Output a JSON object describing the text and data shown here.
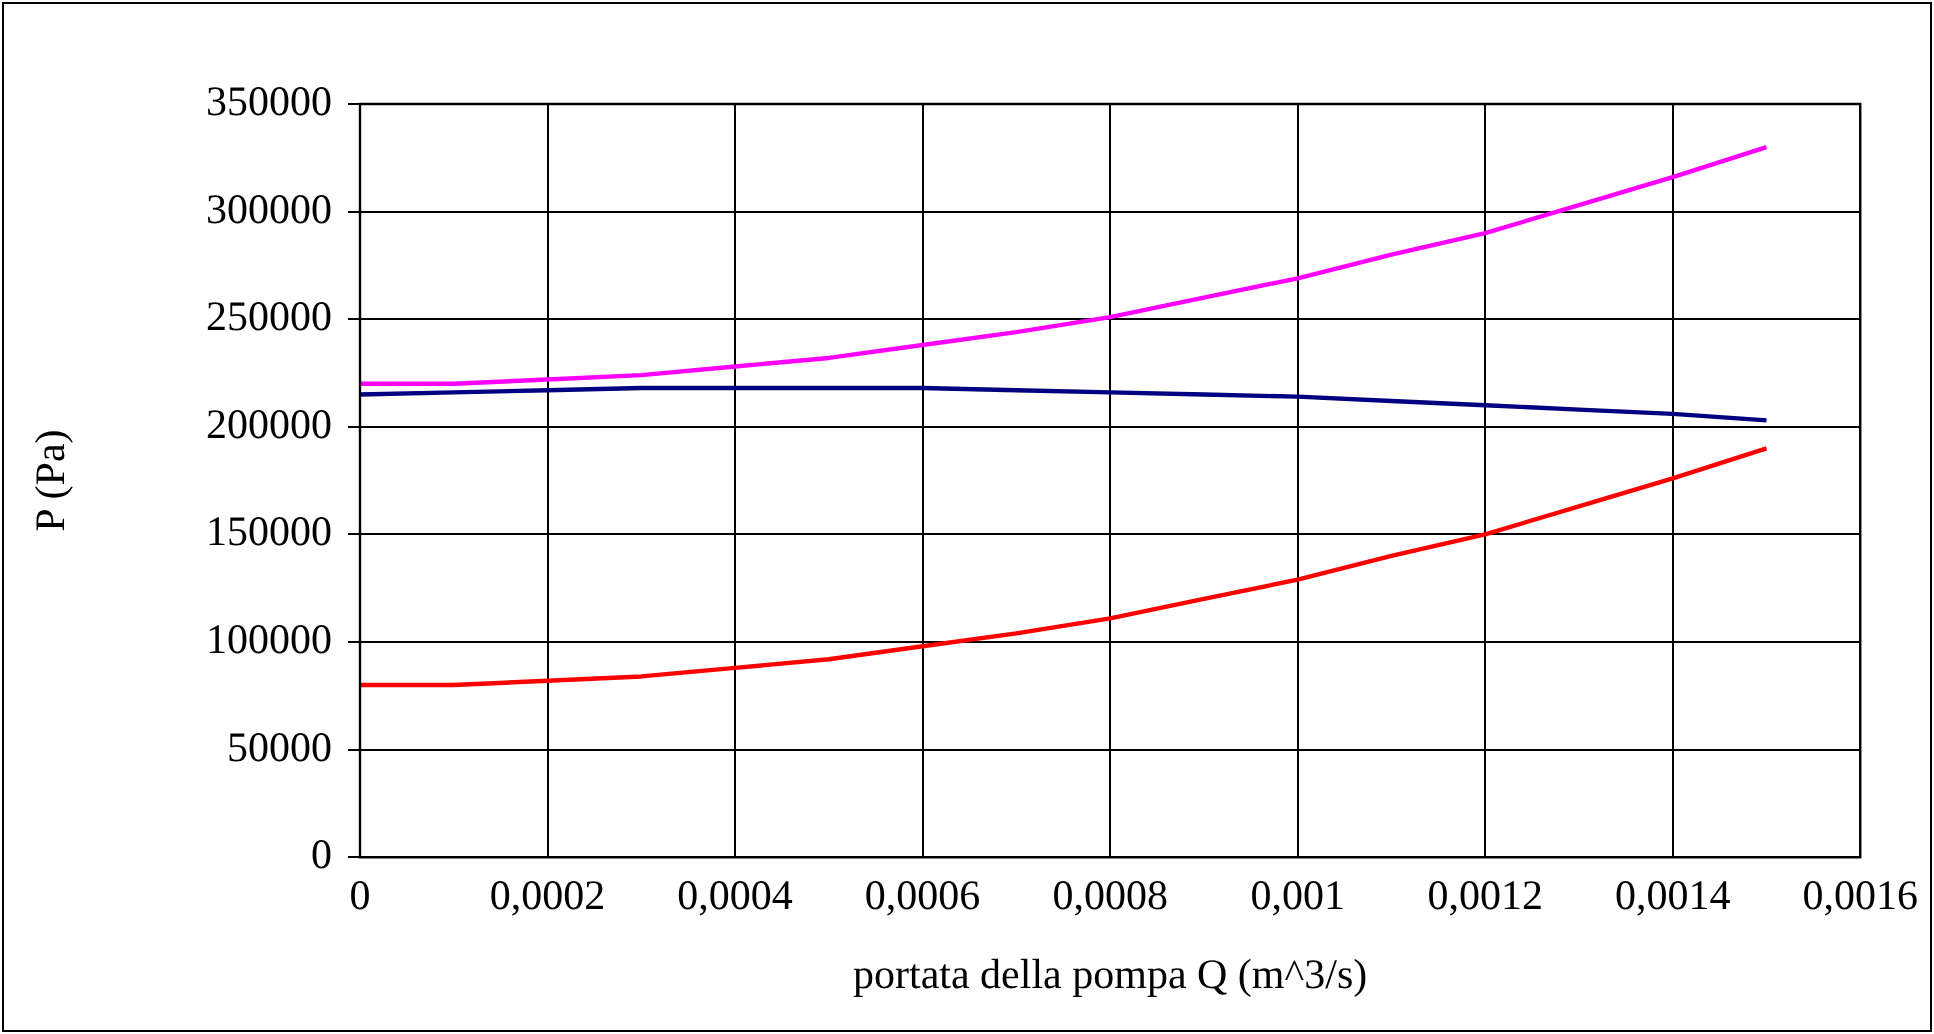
{
  "chart_data": {
    "type": "line",
    "xlabel": "portata della pompa Q (m^3/s)",
    "ylabel": "P (Pa)",
    "x": [
      0,
      0.0001,
      0.0002,
      0.0003,
      0.0004,
      0.0005,
      0.0006,
      0.0007,
      0.0008,
      0.0009,
      0.001,
      0.0011,
      0.0012,
      0.0013,
      0.0014,
      0.0015
    ],
    "series": [
      {
        "color": "#ff00ff",
        "values": [
          220000,
          220000,
          222000,
          224000,
          228000,
          232000,
          238000,
          244000,
          251000,
          260000,
          269000,
          280000,
          290000,
          303000,
          316000,
          330000
        ]
      },
      {
        "color": "#000080",
        "values": [
          215000,
          216000,
          217000,
          218000,
          218000,
          218000,
          218000,
          217000,
          216000,
          215000,
          214000,
          212000,
          210000,
          208000,
          206000,
          203000
        ]
      },
      {
        "color": "#ff0000",
        "values": [
          80000,
          80000,
          82000,
          84000,
          88000,
          92000,
          98000,
          104000,
          111000,
          120000,
          129000,
          140000,
          150000,
          163000,
          176000,
          190000
        ]
      }
    ],
    "xlim": [
      0,
      0.0016
    ],
    "xticks": [
      0,
      {
        "value": 0.0002,
        "label": "0,0002"
      },
      {
        "value": 0.0004,
        "label": "0,0004"
      },
      {
        "value": 0.0006,
        "label": "0,0006"
      },
      {
        "value": 0.0008,
        "label": "0,0008"
      },
      {
        "value": 0.001,
        "label": "0,001"
      },
      {
        "value": 0.0012,
        "label": "0,0012"
      },
      {
        "value": 0.0014,
        "label": "0,0014"
      },
      {
        "value": 0.0016,
        "label": "0,0016"
      }
    ],
    "ylim": [
      0,
      350000
    ],
    "yticks": [
      0,
      50000,
      100000,
      150000,
      200000,
      250000,
      300000,
      350000
    ],
    "grid": true,
    "marker": "none",
    "line_style": "solid",
    "legend": false
  }
}
